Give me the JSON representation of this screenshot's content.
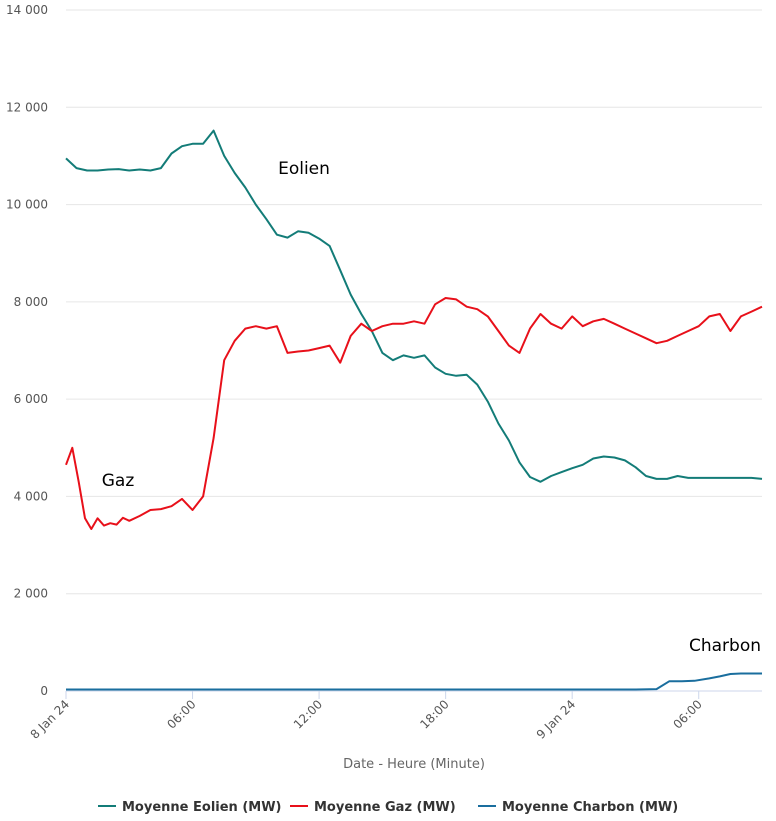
{
  "chart_data": {
    "type": "line",
    "xlabel": "Date - Heure (Minute)",
    "ylabel": "",
    "ylim": [
      0,
      14000
    ],
    "y_ticks": [
      0,
      2000,
      4000,
      6000,
      8000,
      10000,
      12000,
      14000
    ],
    "y_tick_labels": [
      "0",
      "2 000",
      "4 000",
      "6 000",
      "8 000",
      "10 000",
      "12 000",
      "14 000"
    ],
    "x_unit": "hours since 8 Jan 24 00:00",
    "xlim": [
      0,
      33
    ],
    "x_ticks": [
      0,
      6,
      12,
      18,
      24,
      30
    ],
    "x_tick_labels": [
      "8 Jan 24",
      "06:00",
      "12:00",
      "18:00",
      "9 Jan 24",
      "06:00"
    ],
    "grid": "horizontal",
    "legend_position": "bottom",
    "series": [
      {
        "name": "Moyenne Eolien (MW)",
        "color": "#137c78",
        "annotation": "Eolien",
        "x": [
          0,
          0.5,
          1,
          1.5,
          2,
          2.5,
          3,
          3.5,
          4,
          4.5,
          5,
          5.5,
          6,
          6.5,
          7,
          7.5,
          8,
          8.5,
          9,
          9.5,
          10,
          10.5,
          11,
          11.5,
          12,
          12.5,
          13,
          13.5,
          14,
          14.5,
          15,
          15.5,
          16,
          16.5,
          17,
          17.5,
          18,
          18.5,
          19,
          19.5,
          20,
          20.5,
          21,
          21.5,
          22,
          22.5,
          23,
          23.5,
          24,
          24.5,
          25,
          25.5,
          26,
          26.5,
          27,
          27.5,
          28,
          28.5,
          29,
          29.5,
          30,
          30.5,
          31,
          31.5,
          32,
          32.5,
          33
        ],
        "values": [
          10950,
          10750,
          10700,
          10700,
          10720,
          10730,
          10700,
          10720,
          10700,
          10750,
          11050,
          11200,
          11250,
          11250,
          11520,
          11000,
          10650,
          10350,
          10000,
          9700,
          9380,
          9320,
          9450,
          9420,
          9300,
          9150,
          8650,
          8150,
          7750,
          7400,
          6950,
          6800,
          6900,
          6850,
          6900,
          6650,
          6520,
          6480,
          6500,
          6300,
          5950,
          5500,
          5150,
          4700,
          4400,
          4300,
          4420,
          4500,
          4580,
          4650,
          4780,
          4820,
          4800,
          4740,
          4600,
          4420,
          4360,
          4360,
          4420,
          4380,
          4380,
          4380,
          4380,
          4380,
          4380,
          4380,
          4360
        ]
      },
      {
        "name": "Moyenne Gaz (MW)",
        "color": "#e8101a",
        "annotation": "Gaz",
        "x": [
          0,
          0.3,
          0.6,
          0.9,
          1.2,
          1.5,
          1.8,
          2.1,
          2.4,
          2.7,
          3,
          3.5,
          4,
          4.5,
          5,
          5.5,
          6,
          6.5,
          7,
          7.5,
          8,
          8.5,
          9,
          9.5,
          10,
          10.5,
          11,
          11.5,
          12,
          12.5,
          13,
          13.5,
          14,
          14.5,
          15,
          15.5,
          16,
          16.5,
          17,
          17.5,
          18,
          18.5,
          19,
          19.5,
          20,
          20.5,
          21,
          21.5,
          22,
          22.5,
          23,
          23.5,
          24,
          24.5,
          25,
          25.5,
          26,
          26.5,
          27,
          27.5,
          28,
          28.5,
          29,
          29.5,
          30,
          30.5,
          31,
          31.5,
          32,
          32.5,
          33
        ],
        "values": [
          4650,
          5000,
          4300,
          3550,
          3330,
          3550,
          3400,
          3450,
          3420,
          3560,
          3500,
          3600,
          3720,
          3740,
          3800,
          3950,
          3720,
          4000,
          5200,
          6800,
          7200,
          7450,
          7500,
          7450,
          7500,
          6950,
          6980,
          7000,
          7050,
          7100,
          6750,
          7300,
          7550,
          7400,
          7500,
          7550,
          7550,
          7600,
          7550,
          7950,
          8080,
          8050,
          7900,
          7850,
          7700,
          7400,
          7100,
          6950,
          7450,
          7750,
          7550,
          7450,
          7700,
          7500,
          7600,
          7650,
          7550,
          7450,
          7350,
          7250,
          7150,
          7200,
          7300,
          7400,
          7500,
          7700,
          7750,
          7400,
          7700,
          7800,
          7900
        ]
      },
      {
        "name": "Moyenne Charbon (MW)",
        "color": "#1a6e9e",
        "annotation": "Charbon",
        "x": [
          0,
          3,
          6,
          9,
          12,
          15,
          18,
          21,
          24,
          25,
          26,
          27,
          28,
          28.6,
          29.2,
          29.8,
          30.5,
          31,
          31.5,
          32,
          32.5,
          33
        ],
        "values": [
          30,
          30,
          30,
          30,
          30,
          30,
          30,
          30,
          30,
          30,
          30,
          30,
          40,
          200,
          200,
          210,
          260,
          300,
          350,
          360,
          360,
          360
        ]
      }
    ]
  }
}
